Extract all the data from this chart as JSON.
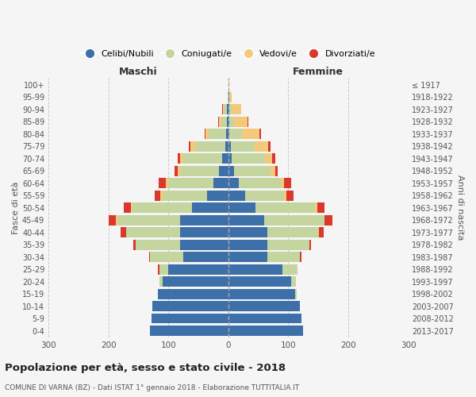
{
  "age_groups": [
    "0-4",
    "5-9",
    "10-14",
    "15-19",
    "20-24",
    "25-29",
    "30-34",
    "35-39",
    "40-44",
    "45-49",
    "50-54",
    "55-59",
    "60-64",
    "65-69",
    "70-74",
    "75-79",
    "80-84",
    "85-89",
    "90-94",
    "95-99",
    "100+"
  ],
  "birth_years": [
    "2013-2017",
    "2008-2012",
    "2003-2007",
    "1998-2002",
    "1993-1997",
    "1988-1992",
    "1983-1987",
    "1978-1982",
    "1973-1977",
    "1968-1972",
    "1963-1967",
    "1958-1962",
    "1953-1957",
    "1948-1952",
    "1943-1947",
    "1938-1942",
    "1933-1937",
    "1928-1932",
    "1923-1927",
    "1918-1922",
    "≤ 1917"
  ],
  "male": {
    "celibi": [
      130,
      128,
      127,
      118,
      110,
      100,
      75,
      80,
      80,
      80,
      60,
      35,
      25,
      15,
      10,
      5,
      3,
      2,
      2,
      0,
      0
    ],
    "coniugati": [
      0,
      0,
      0,
      0,
      5,
      15,
      55,
      75,
      90,
      105,
      100,
      75,
      75,
      65,
      65,
      50,
      30,
      10,
      5,
      1,
      0
    ],
    "vedovi": [
      0,
      0,
      0,
      0,
      0,
      0,
      0,
      0,
      1,
      2,
      2,
      3,
      4,
      5,
      5,
      8,
      5,
      3,
      2,
      0,
      0
    ],
    "divorziati": [
      0,
      0,
      0,
      0,
      0,
      2,
      2,
      3,
      8,
      12,
      12,
      10,
      12,
      5,
      5,
      3,
      2,
      2,
      1,
      0,
      0
    ]
  },
  "female": {
    "nubili": [
      125,
      122,
      120,
      112,
      105,
      90,
      65,
      65,
      65,
      60,
      45,
      28,
      18,
      10,
      6,
      4,
      2,
      2,
      2,
      1,
      0
    ],
    "coniugate": [
      0,
      0,
      0,
      2,
      8,
      25,
      55,
      70,
      85,
      100,
      100,
      65,
      70,
      60,
      55,
      40,
      22,
      8,
      4,
      1,
      0
    ],
    "vedove": [
      0,
      0,
      0,
      0,
      0,
      0,
      0,
      0,
      1,
      1,
      3,
      4,
      5,
      8,
      12,
      22,
      28,
      22,
      15,
      3,
      1
    ],
    "divorziate": [
      0,
      0,
      0,
      0,
      0,
      1,
      2,
      3,
      8,
      12,
      12,
      12,
      12,
      5,
      5,
      4,
      3,
      2,
      1,
      0,
      0
    ]
  },
  "colors": {
    "celibi": "#3d6fa8",
    "coniugati": "#c5d5a0",
    "vedovi": "#f5c97a",
    "divorziati": "#d9382a"
  },
  "xlim": 300,
  "title": "Popolazione per età, sesso e stato civile - 2018",
  "subtitle": "COMUNE DI VARNA (BZ) - Dati ISTAT 1° gennaio 2018 - Elaborazione TUTTITALIA.IT",
  "ylabel_left": "Fasce di età",
  "ylabel_right": "Anni di nascita",
  "xlabel_maschi": "Maschi",
  "xlabel_femmine": "Femmine",
  "bg_color": "#f5f5f5",
  "legend_labels": [
    "Celibi/Nubili",
    "Coniugati/e",
    "Vedovi/e",
    "Divorziati/e"
  ]
}
